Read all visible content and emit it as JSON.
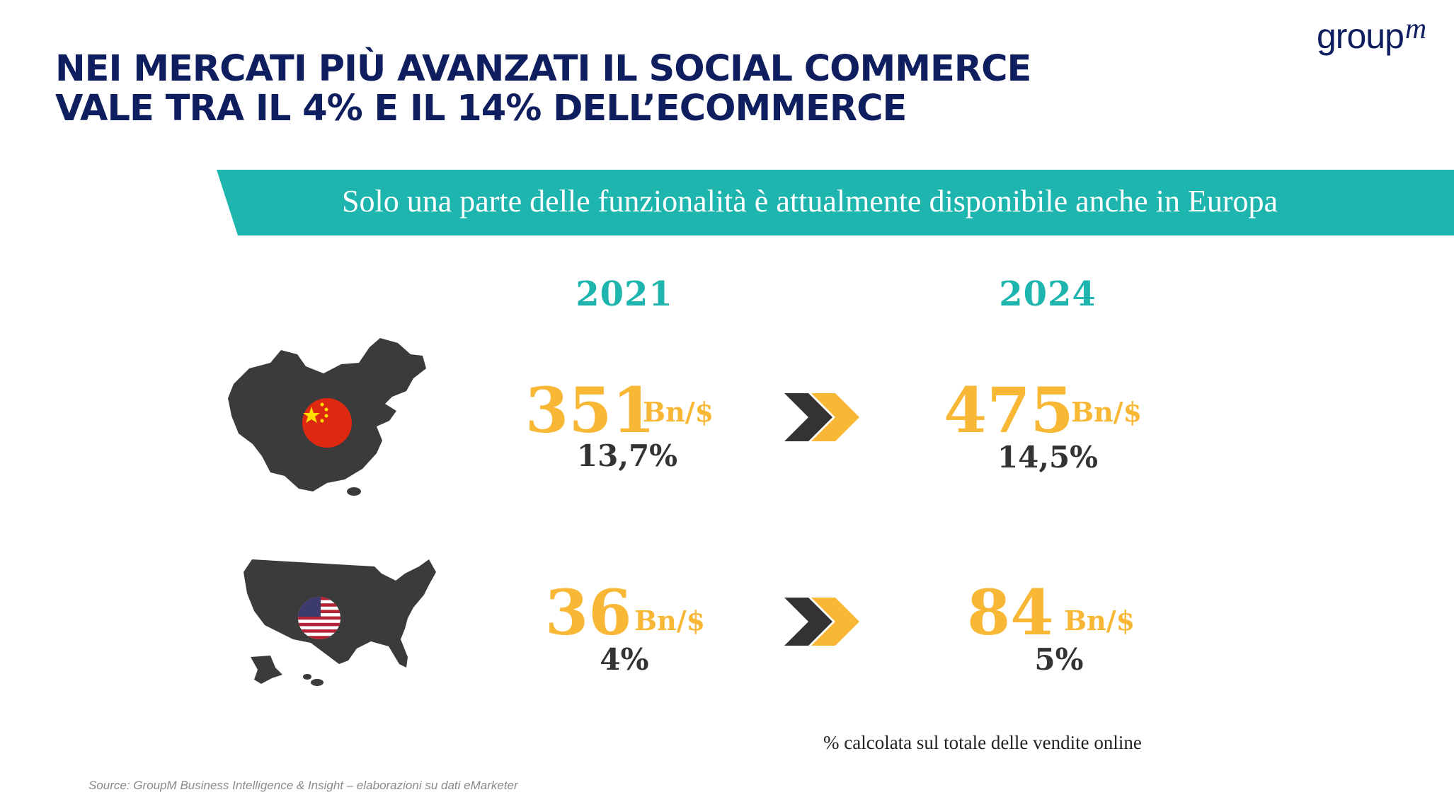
{
  "title": {
    "line1": "NEI MERCATI PIÙ AVANZATI IL SOCIAL COMMERCE",
    "line2": "VALE TRA IL 4% E IL 14% DELL’ECOMMERCE"
  },
  "logo": {
    "main": "group",
    "sup": "m"
  },
  "banner": {
    "text": "Solo una parte delle funzionalità è attualmente disponibile anche in Europa",
    "color": "#1db5ad"
  },
  "years": [
    "2021",
    "2024"
  ],
  "rows": [
    {
      "country_icon": "china-map-icon",
      "flag_icon": "china-flag-icon",
      "y2021": {
        "value": "351",
        "unit": "Bn/$",
        "pct": "13,7%"
      },
      "y2024": {
        "value": "475",
        "unit": "Bn/$",
        "pct": "14,5%"
      }
    },
    {
      "country_icon": "usa-map-icon",
      "flag_icon": "usa-flag-icon",
      "y2021": {
        "value": "36",
        "unit": "Bn/$",
        "pct": "4%"
      },
      "y2024": {
        "value": "84",
        "unit": "Bn/$",
        "pct": "5%"
      }
    }
  ],
  "note": "% calcolata sul totale delle vendite online",
  "source": "Source: GroupM Business Intelligence & Insight – elaborazioni su dati eMarketer",
  "colors": {
    "navy": "#0f1e5e",
    "teal": "#1db5ad",
    "gold": "#f8b734",
    "dark": "#333333"
  }
}
